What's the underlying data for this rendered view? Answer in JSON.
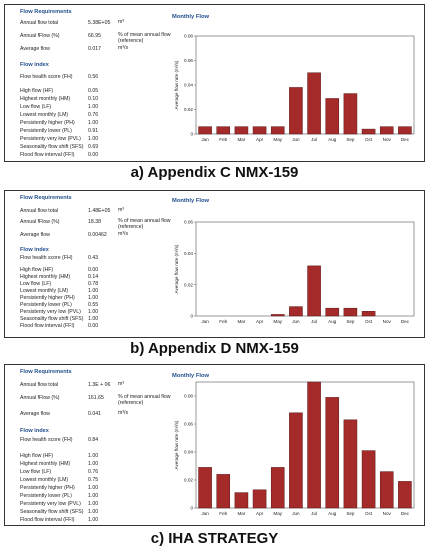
{
  "panels": [
    {
      "caption": "a) Appendix C NMX-159",
      "requirements": {
        "heading": "Flow Requirements",
        "rows": [
          {
            "label": "Annual flow total",
            "value": "5.38E+05",
            "unit": "m³"
          },
          {
            "label": "Annual fFlow (%)",
            "value": "66.95",
            "unit": "% of mean annual flow (reference)"
          },
          {
            "label": "Average flow",
            "value": "0.017",
            "unit": "m³/s"
          }
        ]
      },
      "index": {
        "heading": "Flow index",
        "health": {
          "label": "Flow health score (FH)",
          "value": "0.56"
        },
        "rows": [
          {
            "label": "High flow (HF)",
            "value": "0.05"
          },
          {
            "label": "Highest monthly (HM)",
            "value": "0.10"
          },
          {
            "label": "Low flow (LF)",
            "value": "1.00"
          },
          {
            "label": "Lowest monthly (LM)",
            "value": "0.76"
          },
          {
            "label": "Persistently higher (PH)",
            "value": "1.00"
          },
          {
            "label": "Persistently lower (PL)",
            "value": "0.91"
          },
          {
            "label": "Persistenty very low (PVL)",
            "value": "1.00"
          },
          {
            "label": "Seasonality flow shift (SFS)",
            "value": "0.69"
          },
          {
            "label": "Flood flow interval (FFI)",
            "value": "0.00"
          }
        ]
      }
    },
    {
      "caption": "b) Appendix D NMX-159",
      "requirements": {
        "heading": "Flow Requirements",
        "rows": [
          {
            "label": "Annual flow total",
            "value": "1.48E+05",
            "unit": "m³"
          },
          {
            "label": "Annual fFlow (%)",
            "value": "18.38",
            "unit": "% of mean annual flow (reference)"
          },
          {
            "label": "Average flow",
            "value": "0.00462",
            "unit": "m³/s"
          }
        ]
      },
      "index": {
        "heading": "Flow index",
        "health": {
          "label": "Flow health score (FH)",
          "value": "0.43"
        },
        "rows": [
          {
            "label": "High flow (HF)",
            "value": "0.00"
          },
          {
            "label": "Highest monthly (HM)",
            "value": "0.14"
          },
          {
            "label": "Low flow (LF)",
            "value": "0.78"
          },
          {
            "label": "Lowest monthly (LM)",
            "value": "1.00"
          },
          {
            "label": "Persistently higher (PH)",
            "value": "1.00"
          },
          {
            "label": "Persistently lower (PL)",
            "value": "0.55"
          },
          {
            "label": "Persistenty very low (PVL)",
            "value": "1.00"
          },
          {
            "label": "Seasonality flow shift (SFS)",
            "value": "1.00"
          },
          {
            "label": "Flood flow interval (FFI)",
            "value": "0.00"
          }
        ]
      }
    },
    {
      "caption": "c) IHA STRATEGY",
      "requirements": {
        "heading": "Flow Requirements",
        "rows": [
          {
            "label": "Annual flow total",
            "value": "1.3E + 06",
            "unit": "m³"
          },
          {
            "label": "Annual fFlow (%)",
            "value": "161.65",
            "unit": "% of mean annual flow (reference)"
          },
          {
            "label": "Average flow",
            "value": "0.041",
            "unit": "m³/s"
          }
        ]
      },
      "index": {
        "heading": "Flow index",
        "health": {
          "label": "Flow health score (FH)",
          "value": "0.84"
        },
        "rows": [
          {
            "label": "High flow (HF)",
            "value": "1.00"
          },
          {
            "label": "Highest monthly (HM)",
            "value": "1.00"
          },
          {
            "label": "Low flow (LF)",
            "value": "0.76"
          },
          {
            "label": "Lowest monthly (LM)",
            "value": "0.75"
          },
          {
            "label": "Persistently higher (PH)",
            "value": "1.00"
          },
          {
            "label": "Persistently lower (PL)",
            "value": "1.00"
          },
          {
            "label": "Persistenty very low (PVL)",
            "value": "1.00"
          },
          {
            "label": "Seasonality flow shift (SFS)",
            "value": "1.00"
          },
          {
            "label": "Flood flow interval (FFI)",
            "value": "1.00"
          }
        ]
      }
    }
  ],
  "colors": {
    "bar_fill": "#a52a2a",
    "bar_stroke": "#5a1a1a",
    "heading": "#1f4e8c"
  },
  "chart_data": [
    {
      "type": "bar",
      "title": "Monthly Flow",
      "xlabel": "",
      "ylabel": "Average flow rate (m³/s)",
      "categories": [
        "Jan",
        "Feb",
        "Mar",
        "Apr",
        "May",
        "Jun",
        "Jul",
        "Aug",
        "Sep",
        "Oct",
        "Nov",
        "Dec"
      ],
      "values": [
        0.006,
        0.006,
        0.006,
        0.006,
        0.006,
        0.038,
        0.05,
        0.029,
        0.033,
        0.004,
        0.006,
        0.006
      ],
      "ylim": [
        0,
        0.08
      ],
      "yticks": [
        "0",
        "0.02",
        "0.04",
        "0.06",
        "0.08"
      ],
      "grid": false
    },
    {
      "type": "bar",
      "title": "Monthly Flow",
      "xlabel": "",
      "ylabel": "Average flow rate (m³/s)",
      "categories": [
        "Jan",
        "Feb",
        "Mar",
        "Apr",
        "May",
        "Jun",
        "Jul",
        "Aug",
        "Sep",
        "Oct",
        "Nov",
        "Dec"
      ],
      "values": [
        0.0,
        0.0,
        0.0,
        0.0,
        0.001,
        0.006,
        0.032,
        0.005,
        0.005,
        0.003,
        0.0,
        0.0
      ],
      "ylim": [
        0,
        0.06
      ],
      "yticks": [
        "0",
        "0.02",
        "0.04",
        "0.06"
      ],
      "grid": false
    },
    {
      "type": "bar",
      "title": "Monthly Flow",
      "xlabel": "",
      "ylabel": "Average flow rate (m³/s)",
      "categories": [
        "Jan",
        "Feb",
        "Mar",
        "Apr",
        "May",
        "Jun",
        "Jul",
        "Aug",
        "Sep",
        "Oct",
        "Nov",
        "Dec"
      ],
      "values": [
        0.029,
        0.024,
        0.011,
        0.013,
        0.029,
        0.068,
        0.09,
        0.079,
        0.063,
        0.041,
        0.026,
        0.019
      ],
      "ylim": [
        0,
        0.09
      ],
      "yticks": [
        "0",
        "0.02",
        "0.04",
        "0.06",
        "0.08"
      ],
      "grid": false
    }
  ]
}
